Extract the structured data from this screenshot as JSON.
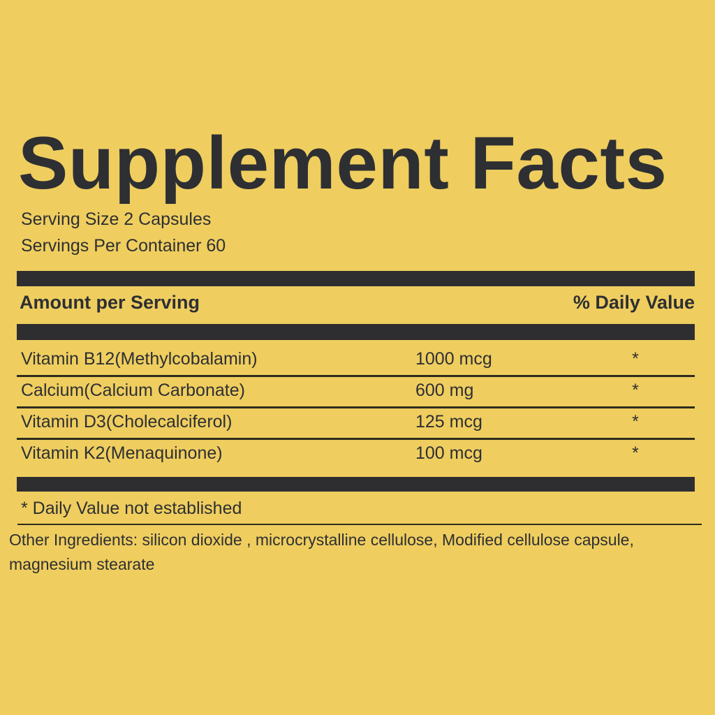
{
  "label": {
    "title": "Supplement Facts",
    "serving_size": "Serving Size 2 Capsules",
    "servings_per_container": "Servings Per Container 60",
    "columns": {
      "amount_header": "Amount per Serving",
      "daily_value_header": "% Daily Value"
    },
    "rows": [
      {
        "name": "Vitamin B12(Methylcobalamin)",
        "amount": "1000 mcg",
        "daily_value": "*"
      },
      {
        "name": "Calcium(Calcium Carbonate)",
        "amount": "600 mg",
        "daily_value": "*"
      },
      {
        "name": "Vitamin D3(Cholecalciferol)",
        "amount": "125 mcg",
        "daily_value": "*"
      },
      {
        "name": "Vitamin K2(Menaquinone)",
        "amount": "100 mcg",
        "daily_value": "*"
      }
    ],
    "footnote": "* Daily Value not established",
    "other_ingredients": {
      "line1": "Other Ingredients: silicon dioxide , microcrystalline cellulose, Modified cellulose capsule,",
      "line2": "magnesium stearate"
    },
    "colors": {
      "background": "#efce5f",
      "ink": "#2e2f33",
      "bar": "#2e2e31"
    }
  }
}
